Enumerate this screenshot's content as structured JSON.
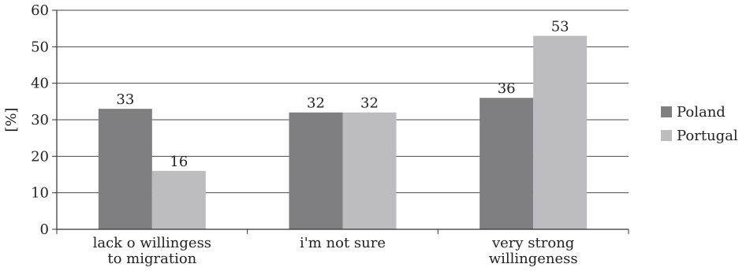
{
  "chart_data": {
    "type": "bar",
    "title": "",
    "xlabel": "",
    "ylabel": "[%]",
    "ylim": [
      0,
      60
    ],
    "yticks": [
      0,
      10,
      20,
      30,
      40,
      50,
      60
    ],
    "grid": true,
    "legend_position": "right",
    "categories": [
      [
        "lack o willingess",
        "to migration"
      ],
      [
        "i'm not sure"
      ],
      [
        "very strong",
        "willingeness"
      ]
    ],
    "series": [
      {
        "name": "Poland",
        "values": [
          33,
          32,
          36
        ],
        "color": "#7f7f82"
      },
      {
        "name": "Portugal",
        "values": [
          16,
          32,
          53
        ],
        "color": "#bdbdc0"
      }
    ]
  }
}
